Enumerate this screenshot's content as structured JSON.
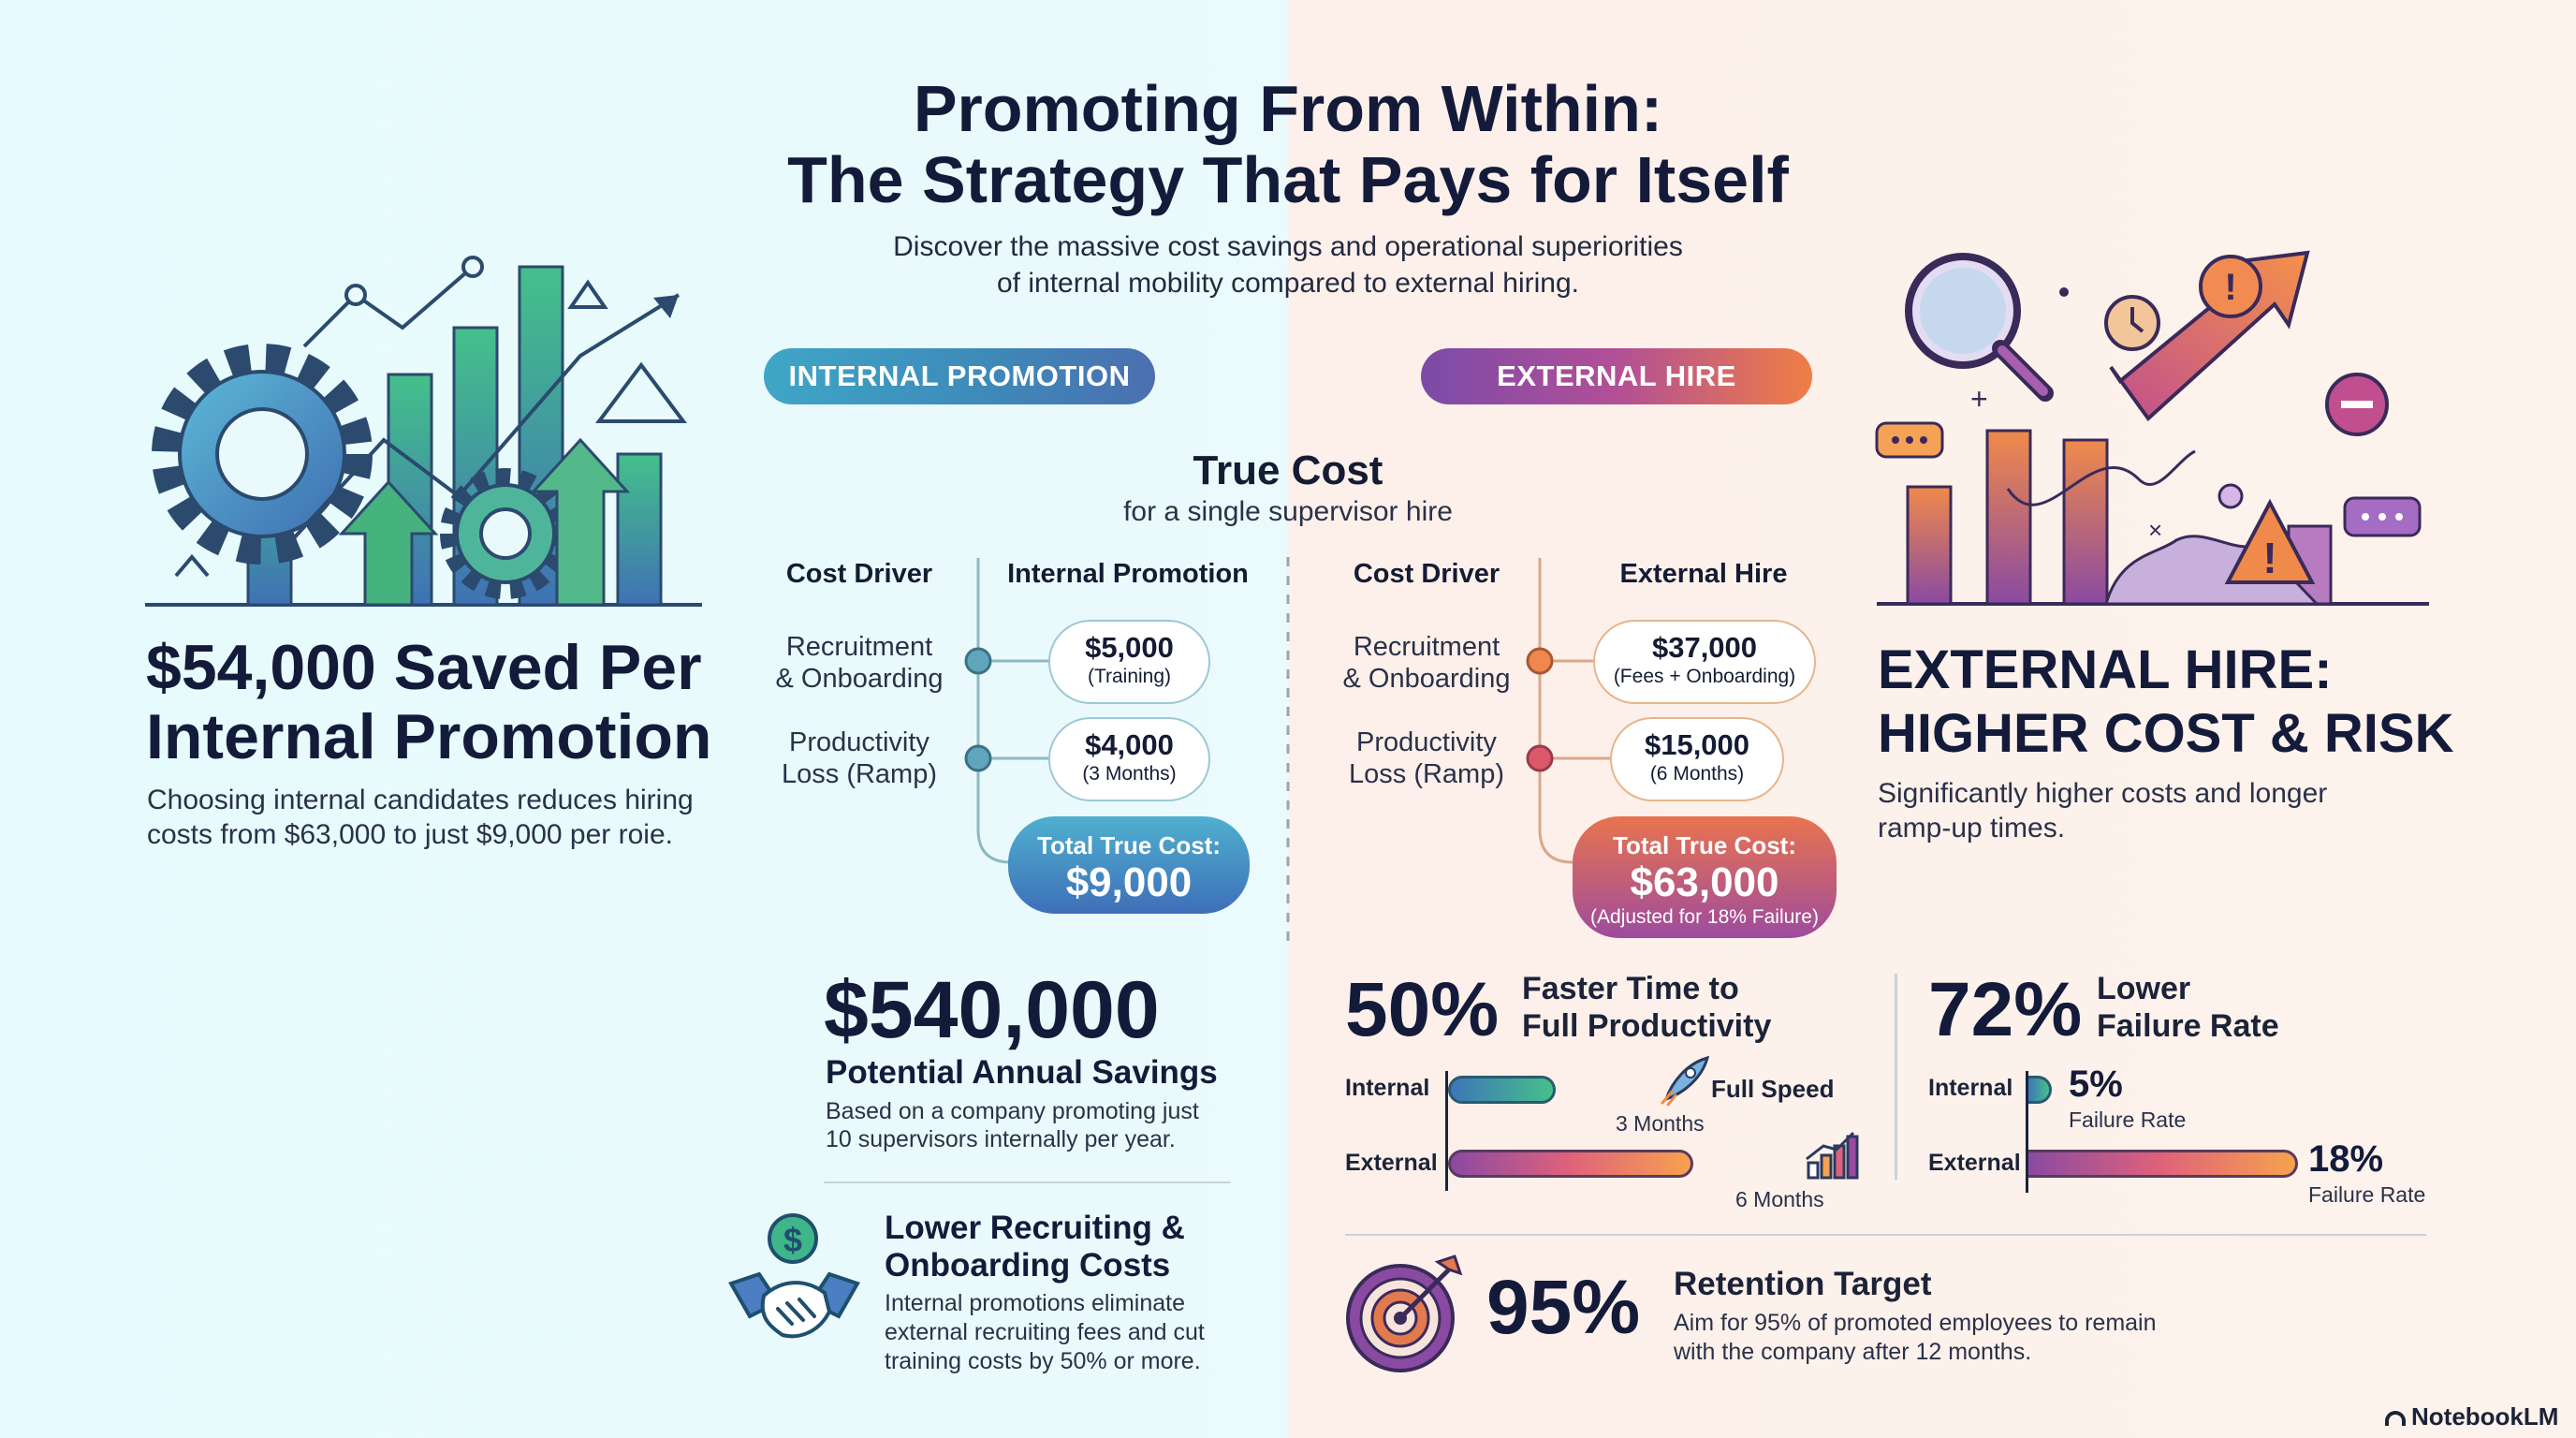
{
  "header": {
    "title_line1": "Promoting From Within:",
    "title_line2": "The Strategy That Pays for Itself",
    "subtitle_line1": "Discover the massive cost savings and operational superiorities",
    "subtitle_line2": "of internal mobility compared to external hiring."
  },
  "pills": {
    "internal": "INTERNAL PROMOTION",
    "external": "EXTERNAL HIRE"
  },
  "true_cost": {
    "title": "True Cost",
    "subtitle": "for a single supervisor hire",
    "internal": {
      "col_driver": "Cost Driver",
      "col_value": "Internal Promotion",
      "driver1_l1": "Recruitment",
      "driver1_l2": "& Onboarding",
      "driver2_l1": "Productivity",
      "driver2_l2": "Loss (Ramp)",
      "value1": "$5,000",
      "note1": "(Training)",
      "value2": "$4,000",
      "note2": "(3 Months)",
      "total_label": "Total True Cost:",
      "total_value": "$9,000"
    },
    "external": {
      "col_driver": "Cost Driver",
      "col_value": "External Hire",
      "driver1_l1": "Recruitment",
      "driver1_l2": "& Onboarding",
      "driver2_l1": "Productivity",
      "driver2_l2": "Loss (Ramp)",
      "value1": "$37,000",
      "note1": "(Fees + Onboarding)",
      "value2": "$15,000",
      "note2": "(6 Months)",
      "total_label": "Total True Cost:",
      "total_value": "$63,000",
      "total_note": "(Adjusted for 18% Failure)"
    }
  },
  "left_panel": {
    "headline_l1": "$54,000 Saved Per",
    "headline_l2": "Internal Promotion",
    "body_l1": "Choosing internal candidates reduces hiring",
    "body_l2": "costs from $63,000 to just $9,000 per roie."
  },
  "right_panel": {
    "headline_l1": "EXTERNAL HIRE:",
    "headline_l2": "HIGHER COST & RISK",
    "body_l1": "Significantly higher costs and longer",
    "body_l2": "ramp-up times."
  },
  "savings": {
    "value": "$540,000",
    "label": "Potential Annual Savings",
    "body_l1": "Based on a company promoting just",
    "body_l2": "10 supervisors internally per year."
  },
  "recruiting": {
    "title_l1": "Lower Recruiting &",
    "title_l2": "Onboarding Costs",
    "body_l1": "Internal promotions eliminate",
    "body_l2": "external recruiting fees and cut",
    "body_l3": "training costs by 50% or more."
  },
  "productivity": {
    "pct": "50%",
    "label_l1": "Faster Time to",
    "label_l2": "Full Productivity",
    "internal_label": "Internal",
    "internal_months": 3,
    "internal_text": "3 Months",
    "internal_note": "Full Speed",
    "external_label": "External",
    "external_months": 6,
    "external_text": "6 Months"
  },
  "failure": {
    "pct": "72%",
    "label_l1": "Lower",
    "label_l2": "Failure Rate",
    "internal_label": "Internal",
    "internal_rate": 5,
    "internal_value": "5%",
    "internal_sub": "Failure Rate",
    "external_label": "External",
    "external_rate": 18,
    "external_value": "18%",
    "external_sub": "Failure Rate"
  },
  "retention": {
    "pct": "95%",
    "title": "Retention Target",
    "body_l1": "Aim for 95% of promoted employees to remain",
    "body_l2": "with the company after 12 months."
  },
  "brand": "NotebookLM",
  "colors": {
    "internal_accent": "#3e9bc2",
    "external_accent": "#e07a52",
    "text_dark": "#141b3a"
  }
}
